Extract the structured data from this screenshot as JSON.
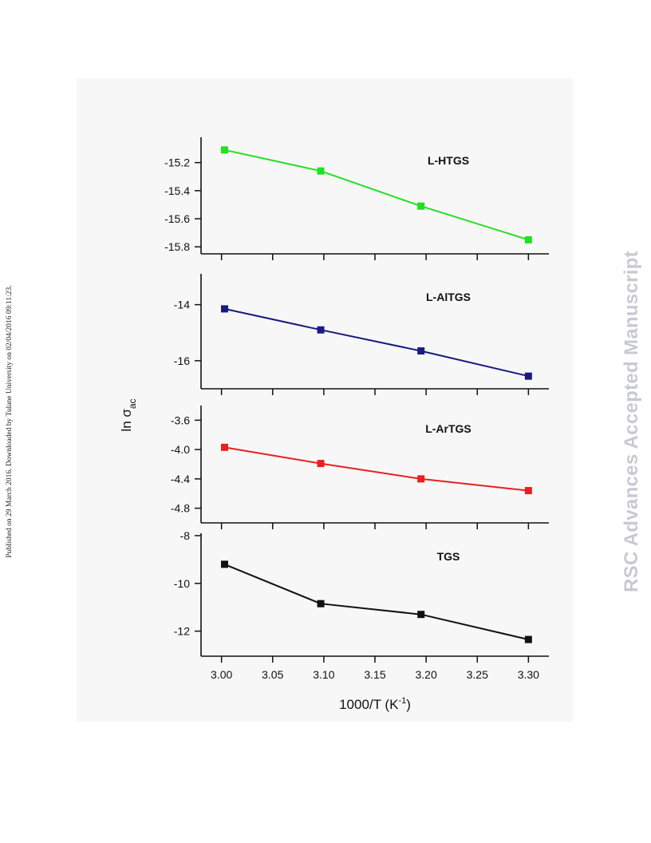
{
  "side_left_text": "Published on 29 March 2016. Downloaded by Tulane University on 02/04/2016 09:11:23.",
  "side_right_text": "RSC Advances Accepted Manuscript",
  "chart_data": {
    "type": "line",
    "xlabel": "1000/T (K",
    "xlabel_sup": "-1",
    "xlabel_close": ")",
    "ylabel": "ln σ",
    "ylabel_sub": "ac",
    "xlim": [
      2.98,
      3.32
    ],
    "x_ticks": [
      "3.00",
      "3.05",
      "3.10",
      "3.15",
      "3.20",
      "3.25",
      "3.30"
    ],
    "x_tick_values": [
      3.0,
      3.05,
      3.1,
      3.15,
      3.2,
      3.25,
      3.3
    ],
    "x": [
      3.003,
      3.097,
      3.195,
      3.3
    ],
    "panels": [
      {
        "label": "L-HTGS",
        "color": "#22e022",
        "ylim": [
          -15.85,
          -15.02
        ],
        "y_ticks": [
          "-15.2",
          "-15.4",
          "-15.6",
          "-15.8"
        ],
        "y_tick_values": [
          -15.2,
          -15.4,
          -15.6,
          -15.8
        ],
        "values": [
          -15.11,
          -15.26,
          -15.51,
          -15.75
        ]
      },
      {
        "label": "L-AlTGS",
        "color": "#1a1a80",
        "ylim": [
          -17.0,
          -12.9
        ],
        "y_ticks": [
          "-14",
          "-16"
        ],
        "y_tick_values": [
          -14,
          -16
        ],
        "values": [
          -14.15,
          -14.9,
          -15.65,
          -16.55
        ]
      },
      {
        "label": "L-ArTGS",
        "color": "#e82020",
        "ylim": [
          -5.0,
          -3.4
        ],
        "y_ticks": [
          "-3.6",
          "-4.0",
          "-4.4",
          "-4.8"
        ],
        "y_tick_values": [
          -3.6,
          -4.0,
          -4.4,
          -4.8
        ],
        "values": [
          -3.97,
          -4.19,
          -4.4,
          -4.56
        ]
      },
      {
        "label": "TGS",
        "color": "#111111",
        "ylim": [
          -13.05,
          -7.9
        ],
        "y_ticks": [
          "-8",
          "-10",
          "-12"
        ],
        "y_tick_values": [
          -8,
          -10,
          -12
        ],
        "values": [
          -9.2,
          -10.85,
          -11.3,
          -12.35
        ]
      }
    ]
  }
}
